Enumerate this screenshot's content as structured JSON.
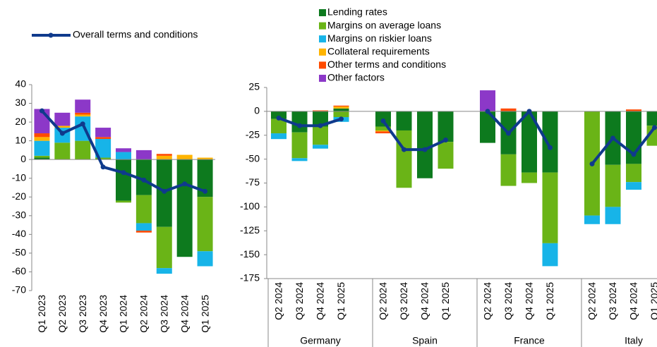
{
  "chart_data": [
    {
      "type": "bar",
      "stacked": true,
      "categories": [
        "Q1 2023",
        "Q2 2023",
        "Q3 2023",
        "Q4 2023",
        "Q1 2024",
        "Q2 2024",
        "Q3 2024",
        "Q4 2024",
        "Q1 2025"
      ],
      "ylim": [
        -70,
        40
      ],
      "yticks": [
        -70,
        -60,
        -50,
        -40,
        -30,
        -20,
        -10,
        0,
        10,
        20,
        30,
        40
      ],
      "series": [
        {
          "color": "#0d7a1e",
          "values": [
            1,
            0,
            0,
            0,
            -22,
            -19,
            -36,
            -52,
            -20
          ]
        },
        {
          "color": "#6ab417",
          "values": [
            1,
            9,
            10,
            1,
            -1,
            -15,
            -22,
            0,
            -29
          ]
        },
        {
          "color": "#17b4e8",
          "values": [
            8,
            8,
            13,
            10,
            4,
            -4,
            -3,
            0,
            -8
          ]
        },
        {
          "color": "#ffb400",
          "values": [
            2,
            1,
            1,
            0,
            0,
            0,
            2,
            2.5,
            1
          ]
        },
        {
          "color": "#ff4b00",
          "values": [
            2,
            0,
            1,
            1,
            0,
            -1,
            1,
            0,
            0
          ]
        },
        {
          "color": "#8c38c8",
          "values": [
            13,
            7,
            7,
            5,
            2,
            5,
            0,
            0,
            0
          ]
        }
      ],
      "line": {
        "name": "Overall terms and conditions",
        "color": "#0f3a8c",
        "values": [
          26,
          14,
          19,
          -4,
          -7,
          -11,
          -17,
          -13,
          -17
        ]
      }
    },
    {
      "type": "bar",
      "stacked": true,
      "groups": [
        "Germany",
        "Spain",
        "France",
        "Italy"
      ],
      "categories": [
        "Q2 2024",
        "Q3 2024",
        "Q4 2024",
        "Q1 2025",
        "Q2 2024",
        "Q3 2024",
        "Q4 2024",
        "Q1 2025",
        "Q2 2024",
        "Q3 2024",
        "Q4 2024",
        "Q1 2025",
        "Q2 2024",
        "Q3 2024",
        "Q4 2024",
        "Q1 2025"
      ],
      "ylim": [
        -175,
        25
      ],
      "yticks": [
        -175,
        -150,
        -125,
        -100,
        -75,
        -50,
        -25,
        0,
        25
      ],
      "series": [
        {
          "name": "Lending rates",
          "color": "#0d7a1e",
          "values": [
            -8,
            -22,
            -16,
            3,
            -16,
            -20,
            -70,
            -32,
            -33,
            -45,
            -64,
            -64,
            0,
            -56,
            -55,
            -15
          ]
        },
        {
          "name": "Margins on average loans",
          "color": "#6ab417",
          "values": [
            -15,
            -27,
            -19,
            -6,
            -4,
            -60,
            0,
            -28,
            0,
            -33,
            -11,
            -74,
            -109,
            -44,
            -19,
            -21
          ]
        },
        {
          "name": "Margins on riskier loans",
          "color": "#17b4e8",
          "values": [
            -6,
            -3,
            -4,
            -5,
            0,
            0,
            0,
            0,
            0,
            0,
            0,
            -24,
            -9,
            -18,
            -8,
            0
          ]
        },
        {
          "name": "Collateral requirements",
          "color": "#ffb400",
          "values": [
            0,
            0,
            0,
            2,
            -1,
            0,
            0,
            0,
            0,
            0,
            0,
            0,
            0,
            0,
            0,
            0
          ]
        },
        {
          "name": "Other terms and conditions",
          "color": "#ff4b00",
          "values": [
            0,
            0,
            1,
            1,
            -2,
            0,
            0,
            0,
            0,
            3,
            0,
            0,
            0,
            0,
            2,
            0
          ]
        },
        {
          "name": "Other factors",
          "color": "#8c38c8",
          "values": [
            0,
            0,
            0,
            0,
            0,
            0,
            0,
            0,
            22,
            0,
            0,
            0,
            0,
            0,
            0,
            0
          ]
        }
      ],
      "line": {
        "color": "#0f3a8c",
        "values": [
          -7,
          -15,
          -15,
          -8,
          -10,
          -40,
          -40,
          -30,
          0,
          -23,
          0,
          -38,
          -55,
          -28,
          -45,
          -17
        ]
      }
    }
  ]
}
